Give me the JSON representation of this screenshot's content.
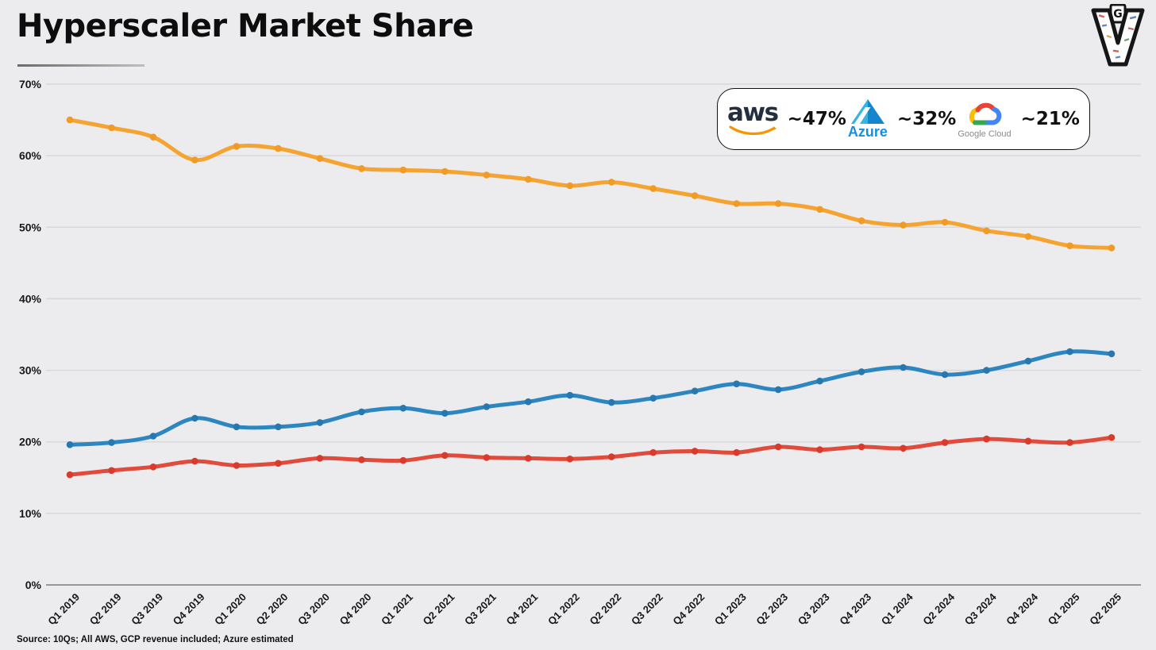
{
  "page": {
    "title": "Hyperscaler Market Share",
    "source_note": "Source: 10Qs; All AWS, GCP revenue included; Azure estimated",
    "logo": {
      "label": "GV collage logo",
      "badge_letter": "G",
      "main_letter": "V"
    }
  },
  "legend": {
    "items": [
      {
        "name": "AWS",
        "logo_text": "aws",
        "value_label": "~47%"
      },
      {
        "name": "Azure",
        "logo_text": "Azure",
        "value_label": "~32%"
      },
      {
        "name": "Google Cloud",
        "logo_text": "Google Cloud",
        "value_label": "~21%"
      }
    ]
  },
  "chart_data": {
    "type": "line",
    "title": "Hyperscaler Market Share",
    "x": [
      "Q1 2019",
      "Q2 2019",
      "Q3 2019",
      "Q4 2019",
      "Q1 2020",
      "Q2 2020",
      "Q3 2020",
      "Q4 2020",
      "Q1 2021",
      "Q2 2021",
      "Q3 2021",
      "Q4 2021",
      "Q1 2022",
      "Q2 2022",
      "Q3 2022",
      "Q4 2022",
      "Q1 2023",
      "Q2 2023",
      "Q3 2023",
      "Q4 2023",
      "Q1 2024",
      "Q2 2024",
      "Q3 2024",
      "Q4 2024",
      "Q1 2025",
      "Q2 2025"
    ],
    "series": [
      {
        "name": "AWS",
        "color": "#F5A331",
        "dot_color": "#EF9B26",
        "values": [
          65.0,
          63.9,
          62.6,
          59.4,
          61.3,
          61.0,
          59.6,
          58.2,
          58.0,
          57.8,
          57.3,
          56.7,
          55.8,
          56.3,
          55.4,
          54.4,
          53.3,
          53.3,
          52.5,
          50.9,
          50.3,
          50.7,
          49.5,
          48.7,
          47.4,
          47.1
        ]
      },
      {
        "name": "Azure",
        "color": "#2E86C1",
        "dot_color": "#2878B0",
        "values": [
          19.6,
          19.9,
          20.8,
          23.3,
          22.1,
          22.1,
          22.7,
          24.2,
          24.7,
          24.0,
          24.9,
          25.6,
          26.5,
          25.5,
          26.1,
          27.1,
          28.1,
          27.3,
          28.5,
          29.8,
          30.4,
          29.4,
          30.0,
          31.3,
          32.6,
          32.3
        ]
      },
      {
        "name": "Google Cloud",
        "color": "#E04B3C",
        "dot_color": "#D83A2B",
        "values": [
          15.4,
          16.0,
          16.5,
          17.3,
          16.7,
          17.0,
          17.7,
          17.5,
          17.4,
          18.1,
          17.8,
          17.7,
          17.6,
          17.9,
          18.5,
          18.7,
          18.5,
          19.3,
          18.9,
          19.3,
          19.1,
          19.9,
          20.4,
          20.1,
          19.9,
          20.6
        ]
      }
    ],
    "ylim": [
      0,
      70
    ],
    "ytick_step": 10,
    "ytick_suffix": "%",
    "grid": true,
    "legend_position": "top-right"
  },
  "colors": {
    "background": "#ececee",
    "gridline": "#d8d8db",
    "axis_line": "#97979c",
    "tick_text": "#18181a",
    "aws_orange": "#F5A331",
    "azure_blue": "#2E86C1",
    "google_red": "#E04B3C"
  }
}
